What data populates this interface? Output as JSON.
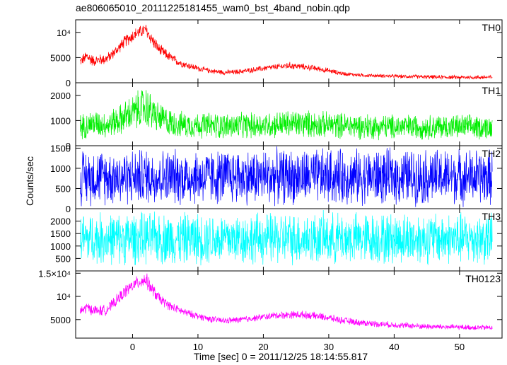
{
  "title": "ae806065010_20111225181455_wam0_bst_4band_nobin.qdp",
  "ylabel": "Counts/sec",
  "xlabel": "Time [sec] 0 = 2011/12/25 18:14:55.817",
  "chart_data": {
    "type": "line",
    "xlim": [
      -8.7,
      56.5
    ],
    "x_ticks": [
      0,
      10,
      20,
      30,
      40,
      50
    ],
    "x_tick_labels": [
      "0",
      "10",
      "20",
      "30",
      "40",
      "50"
    ],
    "panels": [
      {
        "name": "TH0",
        "color": "#ff0000",
        "ylim": [
          0,
          12500
        ],
        "y_ticks": [
          0,
          5000,
          10000
        ],
        "y_tick_labels": [
          "0",
          "5000",
          "10⁴"
        ],
        "envelope": {
          "x": [
            -8,
            -7,
            -6,
            -5,
            -4,
            -3,
            -2,
            -1,
            0,
            1,
            2,
            3,
            4,
            5,
            6,
            7,
            8,
            10,
            12,
            14,
            16,
            18,
            20,
            22,
            24,
            26,
            28,
            30,
            32,
            35,
            40,
            45,
            50,
            55
          ],
          "low": [
            3200,
            3700,
            3100,
            3300,
            3500,
            4600,
            5800,
            7000,
            7800,
            8700,
            9000,
            7000,
            5400,
            4600,
            3800,
            3200,
            2800,
            2200,
            1800,
            1500,
            1600,
            1900,
            2200,
            2500,
            2600,
            2500,
            2200,
            1800,
            1400,
            1100,
            900,
            700,
            650,
            600
          ],
          "high": [
            5200,
            6700,
            5600,
            5800,
            6000,
            6900,
            8300,
            9800,
            10800,
            11400,
            12000,
            10000,
            8000,
            6900,
            5900,
            5000,
            4400,
            3500,
            2900,
            2600,
            2700,
            3100,
            3500,
            3800,
            4200,
            3900,
            3500,
            3000,
            2300,
            1900,
            1700,
            1600,
            1500,
            1600
          ]
        }
      },
      {
        "name": "TH1",
        "color": "#00ee00",
        "ylim": [
          0,
          2500
        ],
        "y_ticks": [
          0,
          1000,
          2000
        ],
        "y_tick_labels": [
          "0",
          "1000",
          "2000"
        ],
        "envelope": {
          "x": [
            -8,
            -6,
            -4,
            -2,
            0,
            1,
            2,
            3,
            4,
            6,
            8,
            10,
            15,
            20,
            25,
            30,
            35,
            40,
            45,
            50,
            55
          ],
          "low": [
            200,
            300,
            250,
            350,
            500,
            550,
            600,
            500,
            400,
            300,
            250,
            250,
            200,
            250,
            250,
            250,
            200,
            200,
            200,
            200,
            200
          ],
          "high": [
            1300,
            1500,
            1400,
            1700,
            2100,
            2300,
            2500,
            2100,
            1800,
            1500,
            1400,
            1400,
            1350,
            1400,
            1500,
            1400,
            1350,
            1300,
            1300,
            1300,
            1250
          ]
        }
      },
      {
        "name": "TH2",
        "color": "#0000ff",
        "ylim": [
          0,
          1560
        ],
        "y_ticks": [
          0,
          500,
          1000,
          1500
        ],
        "y_tick_labels": [
          "0",
          "500",
          "1000",
          "1500"
        ],
        "envelope": {
          "x": [
            -8,
            0,
            10,
            20,
            30,
            40,
            50,
            55
          ],
          "low": [
            30,
            30,
            30,
            30,
            30,
            30,
            30,
            30
          ],
          "high": [
            1550,
            1550,
            1550,
            1550,
            1550,
            1550,
            1550,
            1550
          ]
        }
      },
      {
        "name": "TH3",
        "color": "#00ffff",
        "ylim": [
          0,
          2500
        ],
        "y_ticks": [
          500,
          1000,
          1500,
          2000
        ],
        "y_tick_labels": [
          "500",
          "1000",
          "1500",
          "2000"
        ],
        "envelope": {
          "x": [
            -8,
            0,
            10,
            20,
            30,
            40,
            50,
            55
          ],
          "low": [
            150,
            150,
            150,
            150,
            150,
            150,
            150,
            150
          ],
          "high": [
            2450,
            2450,
            2450,
            2450,
            2450,
            2450,
            2450,
            2450
          ]
        }
      },
      {
        "name": "TH0123",
        "color": "#ff00ff",
        "ylim": [
          1000,
          15500
        ],
        "y_ticks": [
          5000,
          10000,
          15000
        ],
        "y_tick_labels": [
          "5000",
          "10⁴",
          "1.5×10⁴"
        ],
        "envelope": {
          "x": [
            -8,
            -7,
            -6,
            -5,
            -4,
            -3,
            -2,
            -1,
            0,
            1,
            2,
            3,
            4,
            5,
            6,
            8,
            10,
            12,
            14,
            16,
            18,
            20,
            22,
            24,
            26,
            28,
            30,
            32,
            35,
            40,
            45,
            50,
            55
          ],
          "low": [
            5500,
            6200,
            5800,
            5600,
            5800,
            7000,
            8300,
            9600,
            10800,
            11500,
            11800,
            9800,
            8300,
            7400,
            6600,
            5600,
            4900,
            4300,
            4000,
            4100,
            4400,
            4800,
            5000,
            5100,
            5100,
            4900,
            4500,
            4000,
            3500,
            3100,
            2800,
            2700,
            2600
          ],
          "high": [
            8000,
            9000,
            8300,
            8200,
            8400,
            9700,
            11200,
            12800,
            13900,
            14800,
            15500,
            13200,
            11000,
            9800,
            8800,
            7500,
            6600,
            5900,
            5500,
            5700,
            6000,
            6400,
            6800,
            7000,
            7000,
            6700,
            6300,
            5700,
            5100,
            4600,
            4200,
            4000,
            3900
          ]
        }
      }
    ]
  }
}
